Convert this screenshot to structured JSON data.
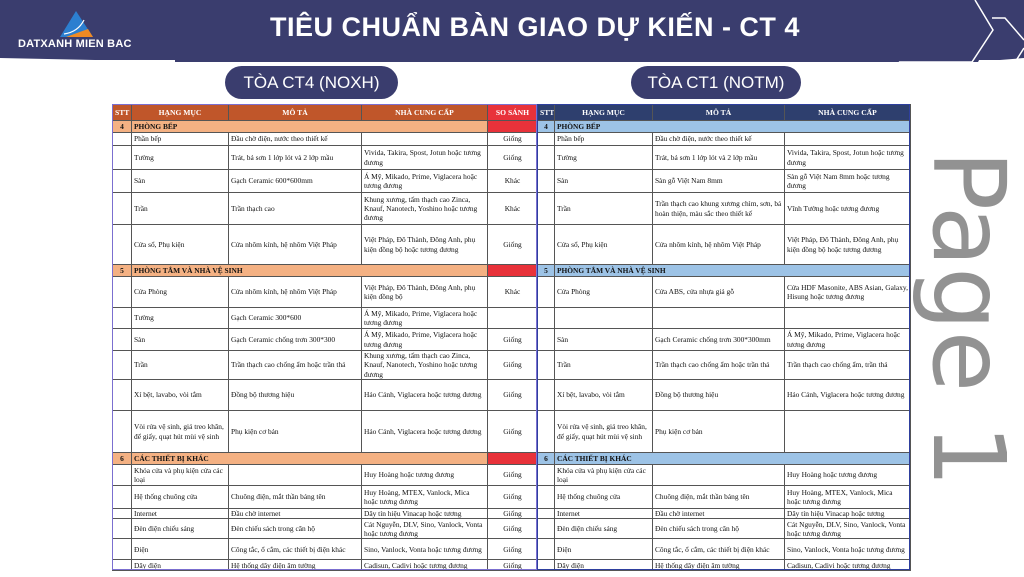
{
  "header": {
    "logo_text": "DATXANH MIEN BAC",
    "title": "TIÊU CHUẨN BÀN GIAO DỰ KIẾN - CT 4"
  },
  "pills": {
    "left": "TÒA CT4 (NOXH)",
    "right": "TÒA CT1 (NOTM)"
  },
  "columns": {
    "stt": "STT",
    "hang_muc": "HẠNG MỤC",
    "mo_ta": "MÔ TẢ",
    "nha_cung_cap": "NHÀ CUNG CẤP",
    "so_sanh": "SO SÁNH"
  },
  "colors": {
    "navy": "#3a3d6e",
    "left_header": "#c0562a",
    "right_header": "#2e3f6e",
    "compare_header": "#e8323a",
    "left_section": "#f4b183",
    "right_section": "#9dc3e6"
  },
  "watermark": "Page 1",
  "sections": [
    {
      "stt": "4",
      "title": "PHÒNG BẾP",
      "rows": [
        {
          "h": 13,
          "left": [
            "Phần bếp",
            "Đầu chờ điện, nước theo thiết kế",
            ""
          ],
          "cmp": "Giống",
          "right": [
            "Phần bếp",
            "Đầu chờ điện, nước theo thiết kế",
            ""
          ]
        },
        {
          "h": 24,
          "left": [
            "Tường",
            "Trát, bả sơn 1 lớp lót và 2 lớp mầu",
            "Vivida, Takira, Spost, Jotun hoặc tương đương"
          ],
          "cmp": "Giống",
          "right": [
            "Tường",
            "Trát, bả sơn 1 lớp lót và 2 lớp mầu",
            "Vivida, Takira, Spost, Jotun hoặc tương đương"
          ]
        },
        {
          "h": 23,
          "left": [
            "Sàn",
            "Gạch Ceramic 600*600mm",
            "Á Mỹ, Mikado, Prime, Viglacera hoặc tương đương"
          ],
          "cmp": "Khác",
          "right": [
            "Sàn",
            "Sàn gỗ Việt Nam 8mm",
            "Sàn gỗ Việt Nam 8mm hoặc tương đương"
          ]
        },
        {
          "h": 32,
          "left": [
            "Trần",
            "Trần thạch cao",
            "Khung xương, tấm thạch cao Zinca, Knauf, Nanotech, Yoshino hoặc tương đương"
          ],
          "cmp": "Khác",
          "right": [
            "Trần",
            "Trần thạch cao khung xương chìm, sơn, bả hoàn thiện, màu sắc theo thiết kế",
            "Vĩnh Tường hoặc tương đương"
          ]
        },
        {
          "h": 40,
          "left": [
            "Cửa sổ, Phụ kiện",
            "Cửa nhôm kính, hệ nhôm Việt Pháp",
            "Việt Pháp, Đô Thành, Đông Anh, phụ kiện đồng bộ hoặc tương đương"
          ],
          "cmp": "Giống",
          "right": [
            "Cửa sổ, Phụ kiện",
            "Cửa nhôm kính, hệ nhôm Việt Pháp",
            "Việt Pháp, Đô Thành, Đông Anh, phụ kiện đồng bộ hoặc tương đương"
          ]
        }
      ]
    },
    {
      "stt": "5",
      "title": "PHÒNG TẮM VÀ NHÀ VỆ SINH",
      "rows": [
        {
          "h": 31,
          "left": [
            "Cửa Phòng",
            "Cửa nhôm kính, hệ nhôm Việt Pháp",
            "Việt Pháp, Đô Thành, Đông Anh, phụ kiện đồng bộ"
          ],
          "cmp": "Khác",
          "right": [
            "Cửa Phòng",
            "Cửa ABS, cửa nhựa giả gỗ",
            "Cửa HDF Masonite, ABS Asian, Galaxy, Hisung hoặc tương đương"
          ]
        },
        {
          "h": 21,
          "left": [
            "Tường",
            "Gạch Ceramic 300*600",
            "Á Mỹ, Mikado, Prime, Viglacera hoặc tương đương"
          ],
          "cmp": "",
          "right": [
            "",
            "",
            ""
          ]
        },
        {
          "h": 22,
          "left": [
            "Sàn",
            "Gạch Ceramic chống trơn 300*300",
            "Á Mỹ, Mikado, Prime, Viglacera hoặc tương đương"
          ],
          "cmp": "Giống",
          "right": [
            "Sàn",
            "Gạch Ceramic chống trơn 300*300mm",
            "Á Mỹ, Mikado, Prime, Viglacera hoặc tương đương"
          ]
        },
        {
          "h": 29,
          "left": [
            "Trần",
            "Trần thạch cao chống ẩm hoặc trần thả",
            "Khung xương, tấm thạch cao Zinca, Knauf, Nanotech, Yoshino hoặc tương đương"
          ],
          "cmp": "Giống",
          "right": [
            "Trần",
            "Trần thạch cao chống ẩm hoặc trần thả",
            "Trần thạch cao chống ẩm, trần thả"
          ]
        },
        {
          "h": 31,
          "left": [
            "Xí bệt, lavabo, vòi tắm",
            "Đồng bộ thương hiệu",
            "Hảo Cảnh, Viglacera hoặc tương đương"
          ],
          "cmp": "Giống",
          "right": [
            "Xí bệt, lavabo, vòi tắm",
            "Đồng bộ thương hiệu",
            "Hảo Cảnh, Viglacera hoặc tương đương"
          ]
        },
        {
          "h": 42,
          "left": [
            "Vòi rửa vệ sinh, giá treo khăn, để giấy, quạt hút mùi vệ sinh",
            "Phụ kiện cơ bản",
            "Hảo Cảnh, Viglacera hoặc tương đương"
          ],
          "cmp": "Giống",
          "right": [
            "Vòi rửa vệ sinh, giá treo khăn, để giấy, quạt hút mùi vệ sinh",
            "Phụ kiện cơ bản",
            ""
          ]
        }
      ]
    },
    {
      "stt": "6",
      "title": "CÁC THIẾT BỊ KHÁC",
      "rows": [
        {
          "h": 21,
          "left": [
            "Khóa cửa và phụ kiện cửa các loại",
            "",
            "Huy Hoàng hoặc tương đương"
          ],
          "cmp": "Giống",
          "right": [
            "Khóa cửa và phụ kiện cửa các loại",
            "",
            "Huy Hoàng hoặc tương đương"
          ]
        },
        {
          "h": 23,
          "left": [
            "Hệ thống chuông cửa",
            "Chuông điện, mắt thần bảng tên",
            "Huy Hoàng, MTEX, Vanlock, Mica hoặc tương đương"
          ],
          "cmp": "Giống",
          "right": [
            "Hệ thống chuông cửa",
            "Chuông điện, mắt thần bảng tên",
            "Huy Hoàng, MTEX, Vanlock, Mica hoặc tương đương"
          ]
        },
        {
          "h": 10,
          "left": [
            "Internet",
            "Đầu chờ internet",
            "Dây tín hiệu Vinacap hoặc tương"
          ],
          "cmp": "Giống",
          "right": [
            "Internet",
            "Đầu chờ internet",
            "Dây tín hiệu Vinacap hoặc tương"
          ]
        },
        {
          "h": 20,
          "left": [
            "Đèn điện chiếu sáng",
            "Đèn chiếu sách trong căn hộ",
            "Cát Nguyễn, DLV, Sino, Vanlock, Vonta hoặc tương đương"
          ],
          "cmp": "Giống",
          "right": [
            "Đèn điện chiếu sáng",
            "Đèn chiếu sách trong căn hộ",
            "Cát Nguyễn, DLV, Sino, Vanlock, Vonta hoặc tương đương"
          ]
        },
        {
          "h": 21,
          "left": [
            "Điện",
            "Công tắc, ổ cắm, các thiết bị điện khác",
            "Sino, Vanlock, Vonta hoặc tương đương"
          ],
          "cmp": "Giống",
          "right": [
            "Điện",
            "Công tắc, ổ cắm, các thiết bị điện khác",
            "Sino, Vanlock, Vonta hoặc tương đương"
          ]
        },
        {
          "h": 11,
          "left": [
            "Dây điện",
            "Hệ thống dây điện âm tường",
            "Cadisun, Cadivi hoặc tương đương"
          ],
          "cmp": "Giống",
          "right": [
            "Dây điện",
            "Hệ thống dây điện âm tường",
            "Cadisun, Cadivi hoặc tương đương"
          ]
        }
      ]
    }
  ]
}
